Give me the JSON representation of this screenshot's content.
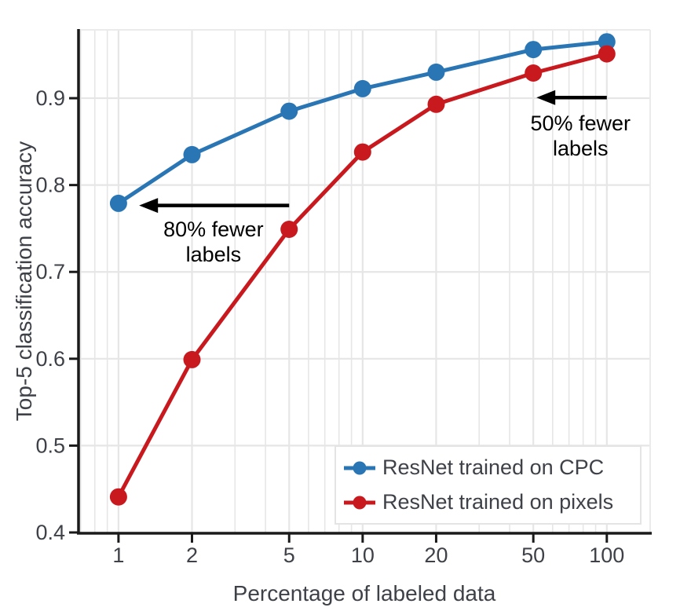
{
  "chart_data": {
    "type": "line",
    "title": "",
    "xlabel": "Percentage of labeled data",
    "ylabel": "Top-5 classification accuracy",
    "x_scale": "log10",
    "grid": "major-y, major+minor-x",
    "legend_position": "lower right",
    "xlim": [
      0.686,
      150.5
    ],
    "ylim": [
      0.4,
      0.9787
    ],
    "x_ticks": [
      1,
      2,
      5,
      10,
      20,
      50,
      100
    ],
    "x_tick_labels": [
      "1",
      "2",
      "5",
      "10",
      "20",
      "50",
      "100"
    ],
    "y_ticks": [
      0.4,
      0.5,
      0.6,
      0.7,
      0.8,
      0.9
    ],
    "y_tick_labels": [
      "0.4",
      "0.5",
      "0.6",
      "0.7",
      "0.8",
      "0.9"
    ],
    "x": [
      1,
      2,
      5,
      10,
      20,
      50,
      100
    ],
    "series": [
      {
        "name": "ResNet trained on CPC",
        "color": "#2a76b5",
        "values": [
          0.779,
          0.835,
          0.885,
          0.911,
          0.93,
          0.956,
          0.965
        ]
      },
      {
        "name": "ResNet trained on pixels",
        "color": "#c8191e",
        "values": [
          0.441,
          0.599,
          0.749,
          0.838,
          0.893,
          0.929,
          0.951
        ]
      }
    ],
    "annotations": [
      {
        "lines": [
          "80% fewer",
          "labels"
        ],
        "x": 2.45,
        "y": 0.749,
        "arrow": {
          "x_from": 5.0,
          "x_to": 1.215,
          "y": 0.7765
        }
      },
      {
        "lines": [
          "50% fewer",
          "labels"
        ],
        "x": 78,
        "y": 0.871,
        "arrow": {
          "x_from": 100,
          "x_to": 51.5,
          "y": 0.9007
        }
      }
    ],
    "colors": {
      "grid": "#e6e6e6",
      "plot_border": "#ebebeb",
      "spine": "#1a1a1a",
      "tick_text": "#3e4147",
      "annotation_text": "#000000",
      "legend_border": "#e4e4e4",
      "background": "#ffffff"
    }
  }
}
